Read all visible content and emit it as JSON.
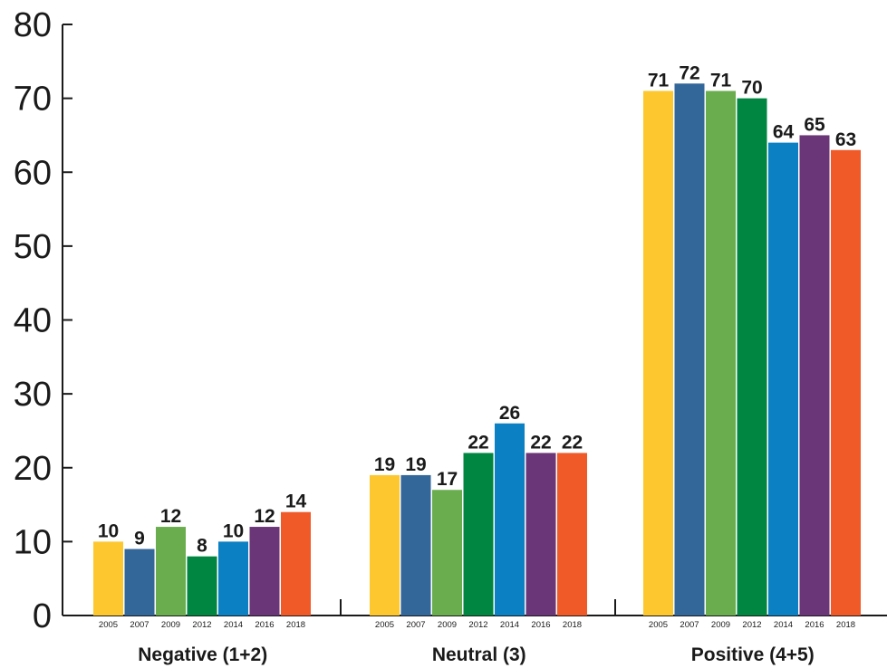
{
  "chart_data": {
    "type": "bar",
    "categories": [
      "Negative (1+2)",
      "Neutral (3)",
      "Positive (4+5)"
    ],
    "series": [
      {
        "name": "2005",
        "values": [
          10,
          19,
          71
        ]
      },
      {
        "name": "2007",
        "values": [
          9,
          19,
          72
        ]
      },
      {
        "name": "2009",
        "values": [
          12,
          17,
          71
        ]
      },
      {
        "name": "2012",
        "values": [
          8,
          22,
          70
        ]
      },
      {
        "name": "2014",
        "values": [
          10,
          26,
          64
        ]
      },
      {
        "name": "2016",
        "values": [
          12,
          22,
          65
        ]
      },
      {
        "name": "2018",
        "values": [
          14,
          22,
          63
        ]
      }
    ],
    "yticks": [
      "0",
      "10",
      "20",
      "30",
      "40",
      "50",
      "60",
      "70",
      "80"
    ],
    "ylim": [
      0,
      80
    ],
    "title": "",
    "xlabel": "",
    "ylabel": "",
    "grid": false,
    "legend": "none",
    "colors": {
      "2005": "#FDC82F",
      "2007": "#336699",
      "2009": "#6AAD4F",
      "2012": "#008641",
      "2014": "#0B80C3",
      "2016": "#6A3677",
      "2018": "#F05A28"
    }
  }
}
